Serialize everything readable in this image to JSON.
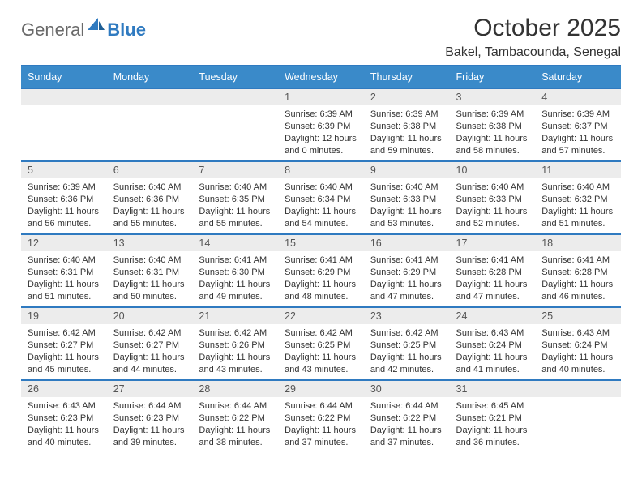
{
  "logo": {
    "text_general": "General",
    "text_blue": "Blue"
  },
  "title": "October 2025",
  "location": "Bakel, Tambacounda, Senegal",
  "colors": {
    "header_bg": "#3a8ac9",
    "header_border": "#2f7ac0",
    "daynum_bg": "#ececec",
    "text": "#333333",
    "logo_gray": "#6a6a6a",
    "logo_blue": "#2f7ac0"
  },
  "days": [
    "Sunday",
    "Monday",
    "Tuesday",
    "Wednesday",
    "Thursday",
    "Friday",
    "Saturday"
  ],
  "weeks": [
    [
      null,
      null,
      null,
      {
        "n": "1",
        "sr": "6:39 AM",
        "ss": "6:39 PM",
        "dl": "12 hours and 0 minutes."
      },
      {
        "n": "2",
        "sr": "6:39 AM",
        "ss": "6:38 PM",
        "dl": "11 hours and 59 minutes."
      },
      {
        "n": "3",
        "sr": "6:39 AM",
        "ss": "6:38 PM",
        "dl": "11 hours and 58 minutes."
      },
      {
        "n": "4",
        "sr": "6:39 AM",
        "ss": "6:37 PM",
        "dl": "11 hours and 57 minutes."
      }
    ],
    [
      {
        "n": "5",
        "sr": "6:39 AM",
        "ss": "6:36 PM",
        "dl": "11 hours and 56 minutes."
      },
      {
        "n": "6",
        "sr": "6:40 AM",
        "ss": "6:36 PM",
        "dl": "11 hours and 55 minutes."
      },
      {
        "n": "7",
        "sr": "6:40 AM",
        "ss": "6:35 PM",
        "dl": "11 hours and 55 minutes."
      },
      {
        "n": "8",
        "sr": "6:40 AM",
        "ss": "6:34 PM",
        "dl": "11 hours and 54 minutes."
      },
      {
        "n": "9",
        "sr": "6:40 AM",
        "ss": "6:33 PM",
        "dl": "11 hours and 53 minutes."
      },
      {
        "n": "10",
        "sr": "6:40 AM",
        "ss": "6:33 PM",
        "dl": "11 hours and 52 minutes."
      },
      {
        "n": "11",
        "sr": "6:40 AM",
        "ss": "6:32 PM",
        "dl": "11 hours and 51 minutes."
      }
    ],
    [
      {
        "n": "12",
        "sr": "6:40 AM",
        "ss": "6:31 PM",
        "dl": "11 hours and 51 minutes."
      },
      {
        "n": "13",
        "sr": "6:40 AM",
        "ss": "6:31 PM",
        "dl": "11 hours and 50 minutes."
      },
      {
        "n": "14",
        "sr": "6:41 AM",
        "ss": "6:30 PM",
        "dl": "11 hours and 49 minutes."
      },
      {
        "n": "15",
        "sr": "6:41 AM",
        "ss": "6:29 PM",
        "dl": "11 hours and 48 minutes."
      },
      {
        "n": "16",
        "sr": "6:41 AM",
        "ss": "6:29 PM",
        "dl": "11 hours and 47 minutes."
      },
      {
        "n": "17",
        "sr": "6:41 AM",
        "ss": "6:28 PM",
        "dl": "11 hours and 47 minutes."
      },
      {
        "n": "18",
        "sr": "6:41 AM",
        "ss": "6:28 PM",
        "dl": "11 hours and 46 minutes."
      }
    ],
    [
      {
        "n": "19",
        "sr": "6:42 AM",
        "ss": "6:27 PM",
        "dl": "11 hours and 45 minutes."
      },
      {
        "n": "20",
        "sr": "6:42 AM",
        "ss": "6:27 PM",
        "dl": "11 hours and 44 minutes."
      },
      {
        "n": "21",
        "sr": "6:42 AM",
        "ss": "6:26 PM",
        "dl": "11 hours and 43 minutes."
      },
      {
        "n": "22",
        "sr": "6:42 AM",
        "ss": "6:25 PM",
        "dl": "11 hours and 43 minutes."
      },
      {
        "n": "23",
        "sr": "6:42 AM",
        "ss": "6:25 PM",
        "dl": "11 hours and 42 minutes."
      },
      {
        "n": "24",
        "sr": "6:43 AM",
        "ss": "6:24 PM",
        "dl": "11 hours and 41 minutes."
      },
      {
        "n": "25",
        "sr": "6:43 AM",
        "ss": "6:24 PM",
        "dl": "11 hours and 40 minutes."
      }
    ],
    [
      {
        "n": "26",
        "sr": "6:43 AM",
        "ss": "6:23 PM",
        "dl": "11 hours and 40 minutes."
      },
      {
        "n": "27",
        "sr": "6:44 AM",
        "ss": "6:23 PM",
        "dl": "11 hours and 39 minutes."
      },
      {
        "n": "28",
        "sr": "6:44 AM",
        "ss": "6:22 PM",
        "dl": "11 hours and 38 minutes."
      },
      {
        "n": "29",
        "sr": "6:44 AM",
        "ss": "6:22 PM",
        "dl": "11 hours and 37 minutes."
      },
      {
        "n": "30",
        "sr": "6:44 AM",
        "ss": "6:22 PM",
        "dl": "11 hours and 37 minutes."
      },
      {
        "n": "31",
        "sr": "6:45 AM",
        "ss": "6:21 PM",
        "dl": "11 hours and 36 minutes."
      },
      null
    ]
  ],
  "labels": {
    "sunrise": "Sunrise:",
    "sunset": "Sunset:",
    "daylight": "Daylight:"
  }
}
